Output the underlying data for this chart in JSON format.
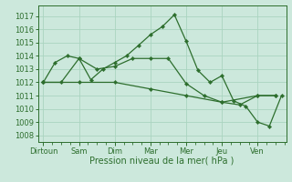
{
  "bg_color": "#cce8dc",
  "grid_color": "#aad4c0",
  "line_color": "#2d6e2d",
  "marker_color": "#2d6e2d",
  "xlabel": "Pression niveau de la mer( hPa )",
  "ylim": [
    1007.5,
    1017.8
  ],
  "yticks": [
    1008,
    1009,
    1010,
    1011,
    1012,
    1013,
    1014,
    1015,
    1016,
    1017
  ],
  "xlabels": [
    "Dirtoun",
    "Sam",
    "Dim",
    "Mar",
    "Mer",
    "Jeu",
    "Ven"
  ],
  "xlabel_fontsize": 7.0,
  "tick_fontsize": 6.0,
  "s1x": [
    0,
    0.33,
    0.67,
    1.0,
    1.33,
    1.67,
    2.0,
    2.33,
    2.67,
    3.0,
    3.33,
    3.67,
    4.0,
    4.33,
    4.67,
    5.0,
    5.33,
    5.67,
    6.0,
    6.33,
    6.67
  ],
  "s1y": [
    1012.0,
    1013.5,
    1014.0,
    1013.8,
    1012.2,
    1013.0,
    1013.5,
    1014.0,
    1014.8,
    1015.6,
    1016.2,
    1017.1,
    1015.1,
    1012.9,
    1012.0,
    1012.5,
    1010.6,
    1010.2,
    1009.0,
    1008.7,
    1011.0
  ],
  "s2x": [
    0,
    0.5,
    1.0,
    1.5,
    2.0,
    2.5,
    3.0,
    3.5,
    4.0,
    4.5,
    5.0,
    5.5,
    6.0,
    6.5
  ],
  "s2y": [
    1012.0,
    1012.0,
    1013.8,
    1013.0,
    1013.2,
    1013.8,
    1013.8,
    1013.8,
    1011.9,
    1011.0,
    1010.5,
    1010.3,
    1011.0,
    1011.0
  ],
  "s3x": [
    0,
    1.0,
    2.0,
    3.0,
    4.0,
    5.0,
    6.0,
    6.5
  ],
  "s3y": [
    1012.0,
    1012.0,
    1012.0,
    1011.5,
    1011.0,
    1010.5,
    1011.0,
    1011.0
  ]
}
